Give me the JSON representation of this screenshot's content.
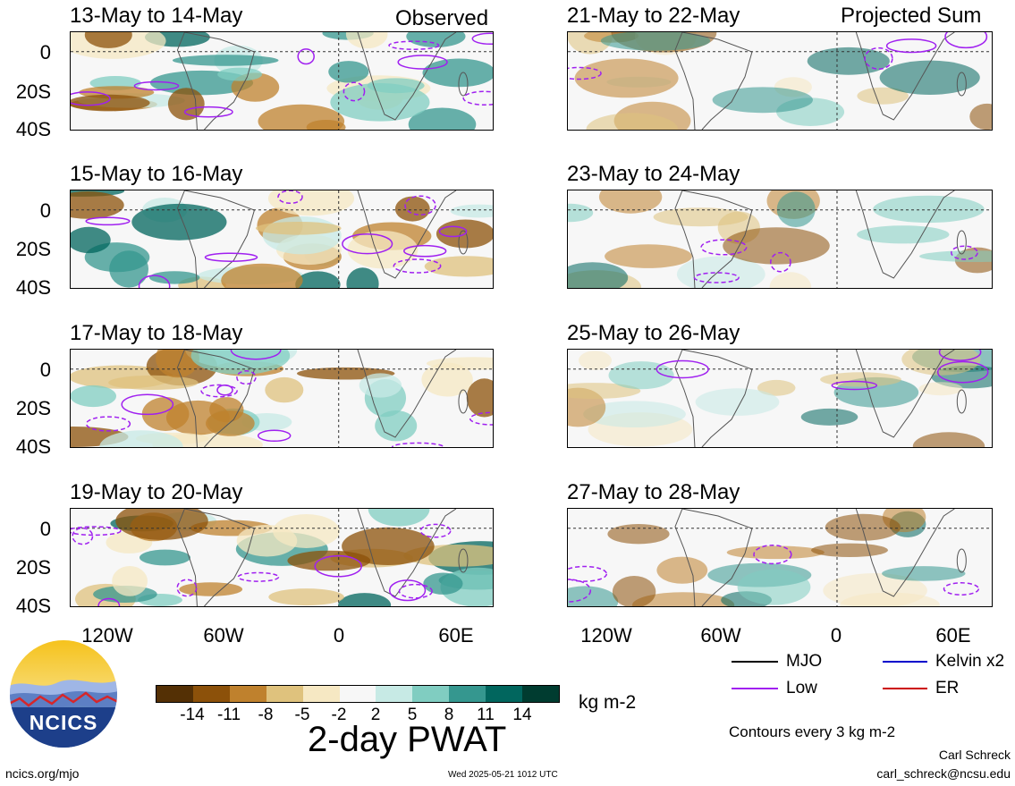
{
  "header": {
    "observed_label": "Observed",
    "projected_label": "Projected Sum"
  },
  "panels": [
    {
      "title": "13-May to 14-May",
      "column": "observed"
    },
    {
      "title": "15-May to 16-May",
      "column": "observed"
    },
    {
      "title": "17-May to 18-May",
      "column": "observed"
    },
    {
      "title": "19-May to 20-May",
      "column": "observed"
    },
    {
      "title": "21-May to 22-May",
      "column": "projected"
    },
    {
      "title": "23-May to 24-May",
      "column": "projected"
    },
    {
      "title": "25-May to 26-May",
      "column": "projected"
    },
    {
      "title": "27-May to 28-May",
      "column": "projected"
    }
  ],
  "axes": {
    "y_ticks": [
      "0",
      "20S",
      "40S"
    ],
    "x_ticks": [
      "120W",
      "60W",
      "0",
      "60E"
    ]
  },
  "legend": {
    "items": [
      {
        "label": "MJO",
        "color": "#000000"
      },
      {
        "label": "Low",
        "color": "#a020f0"
      },
      {
        "label": "Kelvin x2",
        "color": "#0000cc"
      },
      {
        "label": "ER",
        "color": "#cc0000"
      }
    ],
    "contour_note": "Contours every 3 kg m-2"
  },
  "colorbar": {
    "labels": [
      "-14",
      "-11",
      "-8",
      "-5",
      "-2",
      "2",
      "5",
      "8",
      "11",
      "14"
    ],
    "units": "kg m-2",
    "colors": [
      "#543005",
      "#8c510a",
      "#bf812d",
      "#dfc27d",
      "#f6e8c3",
      "#f7f7f7",
      "#c7eae5",
      "#80cdc1",
      "#35978f",
      "#01665e",
      "#003c30"
    ]
  },
  "main_title": "2-day PWAT",
  "logo": {
    "text": "NCICS"
  },
  "footer": {
    "url": "ncics.org/mjo",
    "timestamp": "Wed 2025-05-21 1012 UTC",
    "author": "Carl Schreck",
    "email": "carl_schreck@ncsu.edu"
  }
}
